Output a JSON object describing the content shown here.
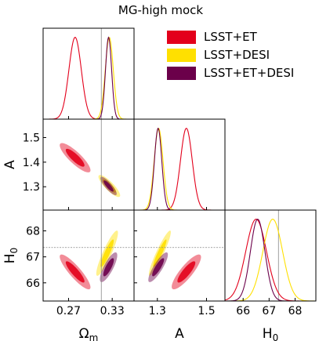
{
  "chart_data": {
    "type": "corner",
    "title": "MG-high mock",
    "parameters": [
      {
        "key": "Om",
        "label": "Ωm",
        "label_main": "Ω",
        "label_sub": "m",
        "range": [
          0.235,
          0.36
        ],
        "ticks": [
          0.27,
          0.33
        ],
        "tick_labels": [
          "0.27",
          "0.33"
        ],
        "fiducial": 0.315
      },
      {
        "key": "A",
        "label": "A",
        "range": [
          1.205,
          1.575
        ],
        "ticks": [
          1.3,
          1.5
        ],
        "tick_labels": [
          "1.3",
          "1.5"
        ],
        "fiducial": null
      },
      {
        "key": "H0",
        "label": "H0",
        "label_main": "H",
        "label_sub": "0",
        "range": [
          65.3,
          68.8
        ],
        "ticks": [
          66,
          67,
          68
        ],
        "tick_labels": [
          "66",
          "67",
          "68"
        ],
        "fiducial": 67.36
      }
    ],
    "y_axes": [
      {
        "param": "A",
        "ticks": [
          1.3,
          1.4,
          1.5
        ],
        "tick_labels": [
          "1.3",
          "1.4",
          "1.5"
        ]
      },
      {
        "param": "H0",
        "ticks": [
          66,
          67,
          68
        ],
        "tick_labels": [
          "66",
          "67",
          "68"
        ]
      }
    ],
    "legend": {
      "placement": "upper-right"
    },
    "series": [
      {
        "name": "LSST+ET",
        "color": "#e3001b",
        "marginals": {
          "Om": {
            "mean": 0.279,
            "sigma": 0.0085
          },
          "A": {
            "mean": 1.418,
            "sigma": 0.024
          },
          "H0": {
            "mean": 66.5,
            "sigma": 0.4
          }
        },
        "pairs": {
          "Om_A": {
            "cx": 0.279,
            "cy": 1.418,
            "sx": 0.0085,
            "sy": 0.024,
            "rho": -0.85
          },
          "Om_H0": {
            "cx": 0.279,
            "cy": 66.42,
            "sx": 0.0085,
            "sy": 0.27,
            "rho": -0.88
          },
          "A_H0": {
            "cx": 1.418,
            "cy": 66.42,
            "sx": 0.024,
            "sy": 0.27,
            "rho": 0.85
          }
        }
      },
      {
        "name": "LSST+DESI",
        "color": "#ffe000",
        "marginals": {
          "Om": {
            "mean": 0.326,
            "sigma": 0.0055
          },
          "A": {
            "mean": 1.305,
            "sigma": 0.018
          },
          "H0": {
            "mean": 67.14,
            "sigma": 0.38
          }
        },
        "pairs": {
          "Om_A": {
            "cx": 0.326,
            "cy": 1.303,
            "sx": 0.006,
            "sy": 0.018,
            "rho": -0.85
          },
          "Om_H0": {
            "cx": 0.323,
            "cy": 67.14,
            "sx": 0.006,
            "sy": 0.35,
            "rho": 0.9
          },
          "A_H0": {
            "cx": 1.31,
            "cy": 67.14,
            "sx": 0.018,
            "sy": 0.35,
            "rho": 0.93
          }
        }
      },
      {
        "name": "LSST+ET+DESI",
        "color": "#6b004a",
        "marginals": {
          "Om": {
            "mean": 0.325,
            "sigma": 0.0042
          },
          "A": {
            "mean": 1.303,
            "sigma": 0.015
          },
          "H0": {
            "mean": 66.56,
            "sigma": 0.28
          }
        },
        "pairs": {
          "Om_A": {
            "cx": 0.325,
            "cy": 1.303,
            "sx": 0.0045,
            "sy": 0.015,
            "rho": -0.85
          },
          "Om_H0": {
            "cx": 0.325,
            "cy": 66.6,
            "sx": 0.0048,
            "sy": 0.23,
            "rho": 0.8
          },
          "A_H0": {
            "cx": 1.303,
            "cy": 66.6,
            "sx": 0.016,
            "sy": 0.23,
            "rho": 0.85
          }
        }
      }
    ],
    "grid": false
  }
}
